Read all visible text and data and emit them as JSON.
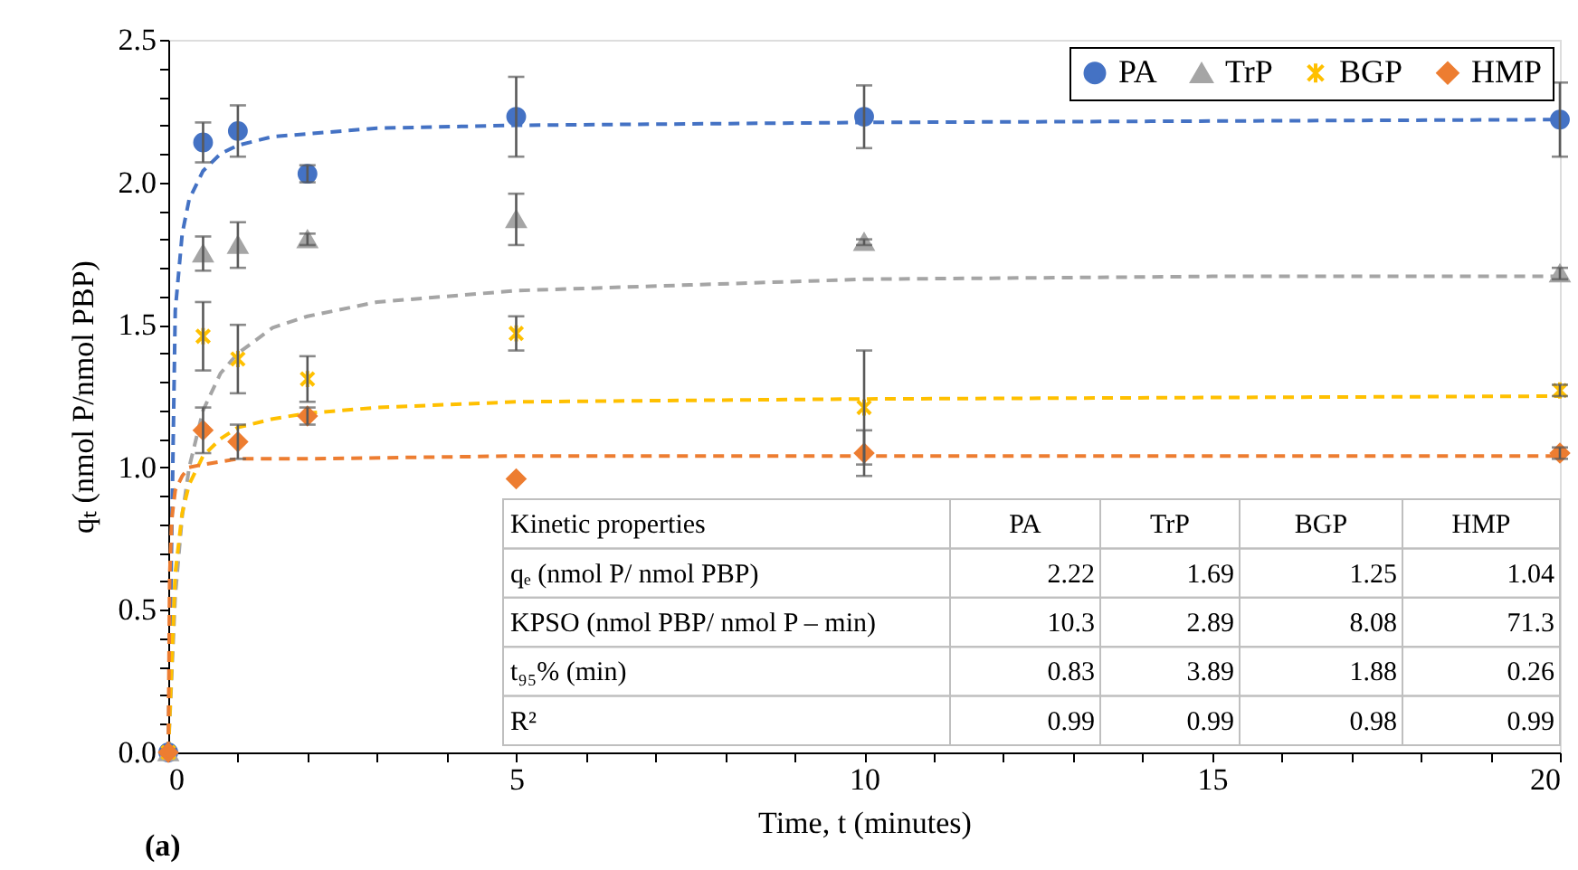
{
  "chart_data": {
    "type": "scatter",
    "xlabel": "Time, t (minutes)",
    "ylabel": "qₜ (nmol P/nmol PBP)",
    "xlim": [
      0,
      20
    ],
    "ylim": [
      0,
      2.5
    ],
    "xticks": [
      0,
      {
        "value": 1,
        "label": null
      },
      {
        "value": 2,
        "label": null
      },
      {
        "value": 3,
        "label": null
      },
      {
        "value": 4,
        "label": null
      },
      5,
      {
        "value": 6,
        "label": null
      },
      {
        "value": 7,
        "label": null
      },
      {
        "value": 8,
        "label": null
      },
      {
        "value": 9,
        "label": null
      },
      10,
      {
        "value": 11,
        "label": null
      },
      {
        "value": 12,
        "label": null
      },
      {
        "value": 13,
        "label": null
      },
      {
        "value": 14,
        "label": null
      },
      15,
      {
        "value": 16,
        "label": null
      },
      {
        "value": 17,
        "label": null
      },
      {
        "value": 18,
        "label": null
      },
      {
        "value": 19,
        "label": null
      },
      20
    ],
    "yticks": [
      {
        "value": 0,
        "label": "0.0"
      },
      {
        "value": 0.1,
        "label": null
      },
      {
        "value": 0.2,
        "label": null
      },
      {
        "value": 0.3,
        "label": null
      },
      {
        "value": 0.4,
        "label": null
      },
      {
        "value": 0.5,
        "label": "0.5"
      },
      {
        "value": 0.6,
        "label": null
      },
      {
        "value": 0.7,
        "label": null
      },
      {
        "value": 0.8,
        "label": null
      },
      {
        "value": 0.9,
        "label": null
      },
      {
        "value": 1,
        "label": "1.0"
      },
      {
        "value": 1.1,
        "label": null
      },
      {
        "value": 1.2,
        "label": null
      },
      {
        "value": 1.3,
        "label": null
      },
      {
        "value": 1.4,
        "label": null
      },
      {
        "value": 1.5,
        "label": "1.5"
      },
      {
        "value": 1.6,
        "label": null
      },
      {
        "value": 1.7,
        "label": null
      },
      {
        "value": 1.8,
        "label": null
      },
      {
        "value": 1.9,
        "label": null
      },
      {
        "value": 2,
        "label": "2.0"
      },
      {
        "value": 2.1,
        "label": null
      },
      {
        "value": 2.2,
        "label": null
      },
      {
        "value": 2.3,
        "label": null
      },
      {
        "value": 2.4,
        "label": null
      },
      {
        "value": 2.5,
        "label": "2.5"
      }
    ],
    "grid": false,
    "legend": "top right",
    "series": [
      {
        "name": "PA",
        "type": "scatter",
        "marker": "circle",
        "color": "#4472c4",
        "x": [
          0,
          0.5,
          1,
          2,
          5,
          10,
          20
        ],
        "values": [
          0,
          2.14,
          2.18,
          2.03,
          2.23,
          2.23,
          2.22
        ],
        "errors": [
          null,
          0.07,
          0.09,
          0.03,
          0.14,
          0.11,
          0.13
        ]
      },
      {
        "name": "TrP",
        "type": "scatter",
        "marker": "triangle",
        "color": "#a5a5a5",
        "x": [
          0,
          0.5,
          1,
          2,
          5,
          10,
          20
        ],
        "values": [
          0,
          1.75,
          1.78,
          1.8,
          1.87,
          1.79,
          1.68
        ],
        "errors": [
          null,
          0.06,
          0.08,
          0.02,
          0.09,
          0.01,
          0.02
        ]
      },
      {
        "name": "BGP",
        "type": "scatter",
        "marker": "cross",
        "color": "#ffc000",
        "x": [
          0,
          0.5,
          1,
          2,
          5,
          10,
          20
        ],
        "values": [
          0,
          1.46,
          1.38,
          1.31,
          1.47,
          1.21,
          1.27
        ],
        "errors": [
          null,
          0.12,
          0.12,
          0.08,
          0.06,
          0.2,
          0.02
        ]
      },
      {
        "name": "HMP",
        "type": "scatter",
        "marker": "diamond",
        "color": "#ed7d31",
        "x": [
          0,
          0.5,
          1,
          2,
          5,
          10,
          20
        ],
        "values": [
          0,
          1.13,
          1.09,
          1.18,
          0.96,
          1.05,
          1.05
        ],
        "errors": [
          null,
          0.08,
          0.06,
          0.03,
          null,
          0.08,
          0.02
        ]
      },
      {
        "type": "line",
        "line_style": "dashed",
        "marker": "none",
        "color": "#4472c4",
        "x": [
          0,
          0.1,
          0.2,
          0.3,
          0.5,
          0.75,
          1,
          1.5,
          2,
          3,
          5,
          10,
          20
        ],
        "values": [
          0,
          1.55,
          1.82,
          1.94,
          2.04,
          2.1,
          2.13,
          2.16,
          2.17,
          2.19,
          2.2,
          2.21,
          2.22
        ]
      },
      {
        "type": "line",
        "line_style": "dashed",
        "marker": "none",
        "color": "#a5a5a5",
        "x": [
          0,
          0.1,
          0.2,
          0.3,
          0.5,
          0.75,
          1,
          1.5,
          2,
          3,
          5,
          7.5,
          10,
          15,
          20
        ],
        "values": [
          0,
          0.55,
          0.83,
          1.0,
          1.2,
          1.33,
          1.4,
          1.49,
          1.53,
          1.58,
          1.62,
          1.64,
          1.66,
          1.67,
          1.67
        ]
      },
      {
        "type": "line",
        "line_style": "dashed",
        "marker": "none",
        "color": "#ffc000",
        "x": [
          0,
          0.1,
          0.2,
          0.3,
          0.5,
          0.75,
          1,
          1.5,
          2,
          3,
          5,
          10,
          20
        ],
        "values": [
          0,
          0.63,
          0.84,
          0.94,
          1.04,
          1.1,
          1.14,
          1.17,
          1.19,
          1.21,
          1.23,
          1.24,
          1.25
        ]
      },
      {
        "type": "line",
        "line_style": "dashed",
        "marker": "none",
        "color": "#ed7d31",
        "x": [
          0,
          0.02,
          0.05,
          0.1,
          0.2,
          0.3,
          0.5,
          1,
          2,
          5,
          20
        ],
        "values": [
          0,
          0.62,
          0.82,
          0.92,
          0.97,
          1.0,
          1.01,
          1.03,
          1.03,
          1.04,
          1.04
        ]
      }
    ],
    "annotations": [
      "Kinetic properties",
      "PA",
      "TrP",
      "BGP",
      "HMP",
      "qₑ (nmol P/ nmol PBP)",
      "2.22",
      "1.69",
      "1.25",
      "1.04",
      "KPSO (nmol PBP/ nmol P – min)",
      "10.3",
      "2.89",
      "8.08",
      "71.3",
      "t₉₅% (min)",
      "0.83",
      "3.89",
      "1.88",
      "0.26",
      "R²",
      "0.99",
      "0.99",
      "0.98",
      "0.99",
      "(a)"
    ]
  }
}
